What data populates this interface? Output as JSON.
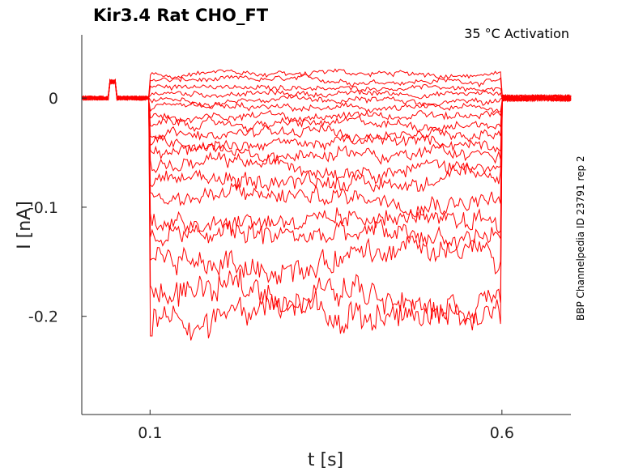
{
  "chart_data": {
    "type": "line",
    "title": "Kir3.4  Rat  CHO_FT",
    "annotation": "35 °C  Activation",
    "side_label": "BBP Channelpedia ID 23791 rep 2",
    "xlabel": "t [s]",
    "ylabel": "I [nA]",
    "xlim": [
      0.003,
      0.698
    ],
    "ylim": [
      -0.29,
      0.058
    ],
    "x_ticks": [
      {
        "value": 0.1,
        "label": "0.1"
      },
      {
        "value": 0.6,
        "label": "0.6"
      }
    ],
    "y_ticks": [
      {
        "value": 0,
        "label": "0"
      },
      {
        "value": -0.1,
        "label": "-0.1"
      },
      {
        "value": -0.2,
        "label": "-0.2"
      }
    ],
    "grid": false,
    "line_color": "#ff0000",
    "pulse": {
      "start": 0.1,
      "end": 0.6
    },
    "prepulse_artifact": {
      "start": 0.042,
      "end": 0.052,
      "level": 0.015
    },
    "series_step_levels_nA": [
      0.022,
      0.016,
      0.01,
      0.004,
      -0.003,
      -0.01,
      -0.017,
      -0.024,
      -0.032,
      -0.041,
      -0.051,
      -0.062,
      -0.075,
      -0.09,
      -0.107,
      -0.127,
      -0.15,
      -0.178,
      -0.2
    ]
  }
}
